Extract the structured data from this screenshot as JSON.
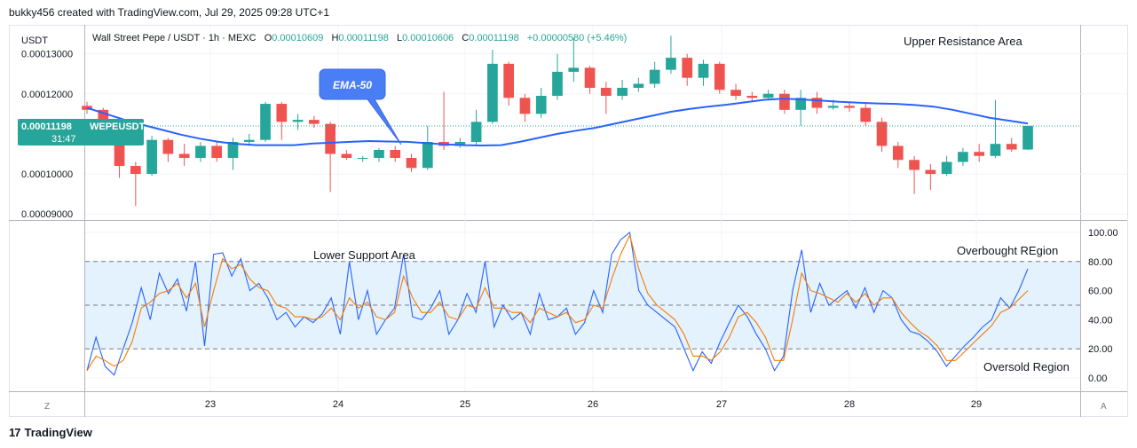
{
  "header": {
    "attribution": "bukky456 created with TradingView.com, Jul 29, 2025 09:28 UTC+1"
  },
  "legend": {
    "symbol": "Wall Street Pepe / USDT · 1h · MEXC",
    "o_label": "O",
    "o_value": "0.00010609",
    "h_label": "H",
    "h_value": "0.00011198",
    "l_label": "L",
    "l_value": "0.00010606",
    "c_label": "C",
    "c_value": "0.00011198",
    "change": "+0.00000580 (+5.46%)"
  },
  "price_axis": {
    "currency": "USDT",
    "ticks": [
      "0.00013000",
      "0.00012000",
      "0.00010000",
      "0.00009000"
    ],
    "current_price": "0.00011198",
    "current_symbol": "WEPEUSDT",
    "countdown": "31:47"
  },
  "osc_axis": {
    "ticks": [
      "100.00",
      "80.00",
      "60.00",
      "40.00",
      "20.00",
      "0.00"
    ]
  },
  "time_axis": {
    "ticks": [
      "23",
      "24",
      "25",
      "26",
      "27",
      "28",
      "29"
    ]
  },
  "annotations": {
    "upper_resistance": "Upper Resistance Area",
    "ema_label": "EMA-50",
    "lower_support": "Lower Support Area",
    "overbought": "Overbought REgion",
    "oversold": "Oversold Region"
  },
  "corner_buttons": {
    "left": "Z",
    "right": "A"
  },
  "footer": {
    "brand": "TradingView",
    "logo": "17"
  },
  "colors": {
    "up": "#26a69a",
    "down": "#ef5350",
    "ema": "#2962ff",
    "stoch_k": "#2962ff",
    "stoch_d": "#f57c00",
    "band_fill": "#e3f2fd",
    "callout": "#4a7ef5",
    "price_tag": "#26a69a"
  },
  "chart_data": [
    {
      "type": "candlestick",
      "title": "Wall Street Pepe / USDT · 1h · MEXC",
      "ylabel": "USDT",
      "x_ticks": [
        "23",
        "24",
        "25",
        "26",
        "27",
        "28",
        "29"
      ],
      "ylim": [
        8.85e-05,
        0.000137
      ],
      "indicator": {
        "name": "EMA-50",
        "values": [
          0.0001165,
          0.000115,
          0.0001135,
          0.0001122,
          0.000111,
          0.0001098,
          0.0001088,
          0.000108,
          0.0001075,
          0.0001072,
          0.0001072,
          0.0001072,
          0.0001076,
          0.0001078,
          0.000108,
          0.0001082,
          0.0001081,
          0.000108,
          0.0001077,
          0.0001074,
          0.0001072,
          0.0001071,
          0.0001072,
          0.000108,
          0.000109,
          0.00011,
          0.0001108,
          0.0001115,
          0.0001125,
          0.0001135,
          0.0001145,
          0.0001155,
          0.0001162,
          0.0001168,
          0.0001173,
          0.0001179,
          0.0001185,
          0.0001188,
          0.0001186,
          0.0001183,
          0.000118,
          0.0001178,
          0.0001176,
          0.0001175,
          0.0001172,
          0.0001168,
          0.000116,
          0.000115,
          0.000114,
          0.0001133,
          0.0001126
        ]
      },
      "candles": [
        [
          0.000117,
          0.000116,
          0.000118,
          0.000115
        ],
        [
          0.000116,
          0.000111,
          0.0001165,
          0.0001095
        ],
        [
          0.000111,
          0.000102,
          0.000112,
          9.9e-05
        ],
        [
          0.000102,
          0.0001,
          0.000103,
          9.2e-05
        ],
        [
          0.0001,
          0.0001085,
          0.0001095,
          9.95e-05
        ],
        [
          0.0001085,
          0.000105,
          0.000109,
          0.000103
        ],
        [
          0.000105,
          0.000104,
          0.0001075,
          0.000102
        ],
        [
          0.000104,
          0.000107,
          0.000108,
          0.000103
        ],
        [
          0.000107,
          0.000104,
          0.000108,
          0.000103
        ],
        [
          0.000104,
          0.000108,
          0.000109,
          0.000101
        ],
        [
          0.000108,
          0.0001085,
          0.00011,
          0.000107
        ],
        [
          0.0001085,
          0.0001175,
          0.000118,
          0.000108
        ],
        [
          0.0001175,
          0.000113,
          0.000118,
          0.0001085
        ],
        [
          0.000113,
          0.0001135,
          0.000115,
          0.000111
        ],
        [
          0.0001135,
          0.0001125,
          0.0001145,
          0.0001115
        ],
        [
          0.0001125,
          0.000105,
          0.000113,
          9.55e-05
        ],
        [
          0.000105,
          0.000104,
          0.000106,
          0.0001035
        ],
        [
          0.000104,
          0.000104,
          0.0001045,
          0.000103
        ],
        [
          0.000104,
          0.000106,
          0.0001065,
          0.000103
        ],
        [
          0.000106,
          0.000104,
          0.000107,
          0.000103
        ],
        [
          0.000104,
          0.0001015,
          0.000105,
          0.0001005
        ],
        [
          0.0001015,
          0.000108,
          0.000112,
          0.000101
        ],
        [
          0.000108,
          0.000107,
          0.0001205,
          0.000106
        ],
        [
          0.000107,
          0.000108,
          0.000109,
          0.0001065
        ],
        [
          0.000108,
          0.000113,
          0.000116,
          0.000107
        ],
        [
          0.000113,
          0.0001275,
          0.000131,
          0.0001125
        ],
        [
          0.0001275,
          0.000119,
          0.000128,
          0.000117
        ],
        [
          0.000119,
          0.000115,
          0.00012,
          0.000113
        ],
        [
          0.000115,
          0.0001195,
          0.0001215,
          0.000114
        ],
        [
          0.0001195,
          0.0001255,
          0.00013,
          0.0001185
        ],
        [
          0.0001255,
          0.0001265,
          0.000134,
          0.000123
        ],
        [
          0.0001265,
          0.0001215,
          0.000127,
          0.00012
        ],
        [
          0.0001215,
          0.0001195,
          0.000123,
          0.000115
        ],
        [
          0.0001195,
          0.0001215,
          0.0001235,
          0.0001185
        ],
        [
          0.0001215,
          0.0001225,
          0.000124,
          0.0001205
        ],
        [
          0.0001225,
          0.000126,
          0.000128,
          0.0001215
        ],
        [
          0.000126,
          0.000129,
          0.0001345,
          0.000125
        ],
        [
          0.000129,
          0.000124,
          0.00013,
          0.000122
        ],
        [
          0.000124,
          0.0001275,
          0.0001285,
          0.000122
        ],
        [
          0.0001275,
          0.000121,
          0.000128,
          0.00012
        ],
        [
          0.000121,
          0.0001195,
          0.0001225,
          0.0001185
        ],
        [
          0.0001195,
          0.000119,
          0.0001205,
          0.000118
        ],
        [
          0.000119,
          0.00012,
          0.000121,
          0.0001185
        ],
        [
          0.00012,
          0.000116,
          0.000121,
          0.000115
        ],
        [
          0.000116,
          0.000119,
          0.000121,
          0.000112
        ],
        [
          0.000119,
          0.0001165,
          0.0001205,
          0.000115
        ],
        [
          0.0001165,
          0.000117,
          0.0001185,
          0.000116
        ],
        [
          0.000117,
          0.0001165,
          0.000118,
          0.0001155
        ],
        [
          0.0001165,
          0.000113,
          0.0001175,
          0.000112
        ],
        [
          0.000113,
          0.000107,
          0.000114,
          0.0001055
        ],
        [
          0.000107,
          0.0001035,
          0.000108,
          0.0001015
        ],
        [
          0.0001035,
          0.000101,
          0.0001045,
          9.5e-05
        ],
        [
          0.000101,
          0.0001,
          0.0001025,
          9.6e-05
        ],
        [
          0.0001,
          0.000103,
          0.0001045,
          9.95e-05
        ],
        [
          0.000103,
          0.0001055,
          0.0001065,
          0.000102
        ],
        [
          0.0001055,
          0.0001045,
          0.0001075,
          0.000103
        ],
        [
          0.0001045,
          0.0001075,
          0.0001185,
          0.000104
        ],
        [
          0.0001075,
          0.0001061,
          0.000109,
          0.0001055
        ],
        [
          0.0001061,
          0.000112,
          0.000112,
          0.000106
        ]
      ]
    },
    {
      "type": "line",
      "title": "",
      "ylim": [
        0,
        100
      ],
      "levels": [
        80,
        50,
        20
      ],
      "x_ticks": [
        "23",
        "24",
        "25",
        "26",
        "27",
        "28",
        "29"
      ],
      "series": [
        {
          "name": "",
          "values": [
            5,
            28,
            8,
            2,
            20,
            38,
            62,
            40,
            72,
            58,
            68,
            46,
            80,
            22,
            85,
            86,
            70,
            82,
            60,
            65,
            55,
            40,
            45,
            35,
            42,
            38,
            44,
            55,
            30,
            80,
            40,
            60,
            30,
            40,
            48,
            85,
            42,
            40,
            48,
            60,
            30,
            40,
            58,
            45,
            80,
            35,
            50,
            40,
            45,
            30,
            58,
            40,
            42,
            48,
            30,
            38,
            60,
            45,
            85,
            95,
            100,
            60,
            50,
            45,
            40,
            35,
            20,
            5,
            18,
            10,
            25,
            38,
            50,
            42,
            30,
            20,
            5,
            15,
            60,
            88,
            45,
            65,
            50,
            55,
            60,
            48,
            62,
            45,
            60,
            55,
            40,
            32,
            30,
            25,
            18,
            8,
            15,
            22,
            28,
            35,
            40,
            55,
            48,
            60,
            75
          ]
        },
        {
          "name": "",
          "values": [
            5,
            15,
            12,
            8,
            12,
            25,
            48,
            52,
            58,
            60,
            65,
            55,
            65,
            35,
            60,
            82,
            75,
            78,
            68,
            62,
            60,
            50,
            48,
            42,
            42,
            40,
            42,
            48,
            40,
            55,
            48,
            52,
            42,
            40,
            45,
            70,
            55,
            45,
            45,
            52,
            42,
            40,
            50,
            48,
            62,
            48,
            48,
            45,
            45,
            38,
            48,
            45,
            42,
            45,
            38,
            40,
            50,
            48,
            68,
            85,
            98,
            75,
            58,
            50,
            45,
            40,
            30,
            15,
            15,
            12,
            18,
            28,
            42,
            45,
            38,
            28,
            12,
            12,
            40,
            72,
            60,
            58,
            55,
            52,
            58,
            52,
            58,
            50,
            55,
            55,
            45,
            38,
            32,
            28,
            22,
            12,
            12,
            18,
            24,
            30,
            36,
            45,
            48,
            54,
            60
          ]
        }
      ]
    }
  ]
}
